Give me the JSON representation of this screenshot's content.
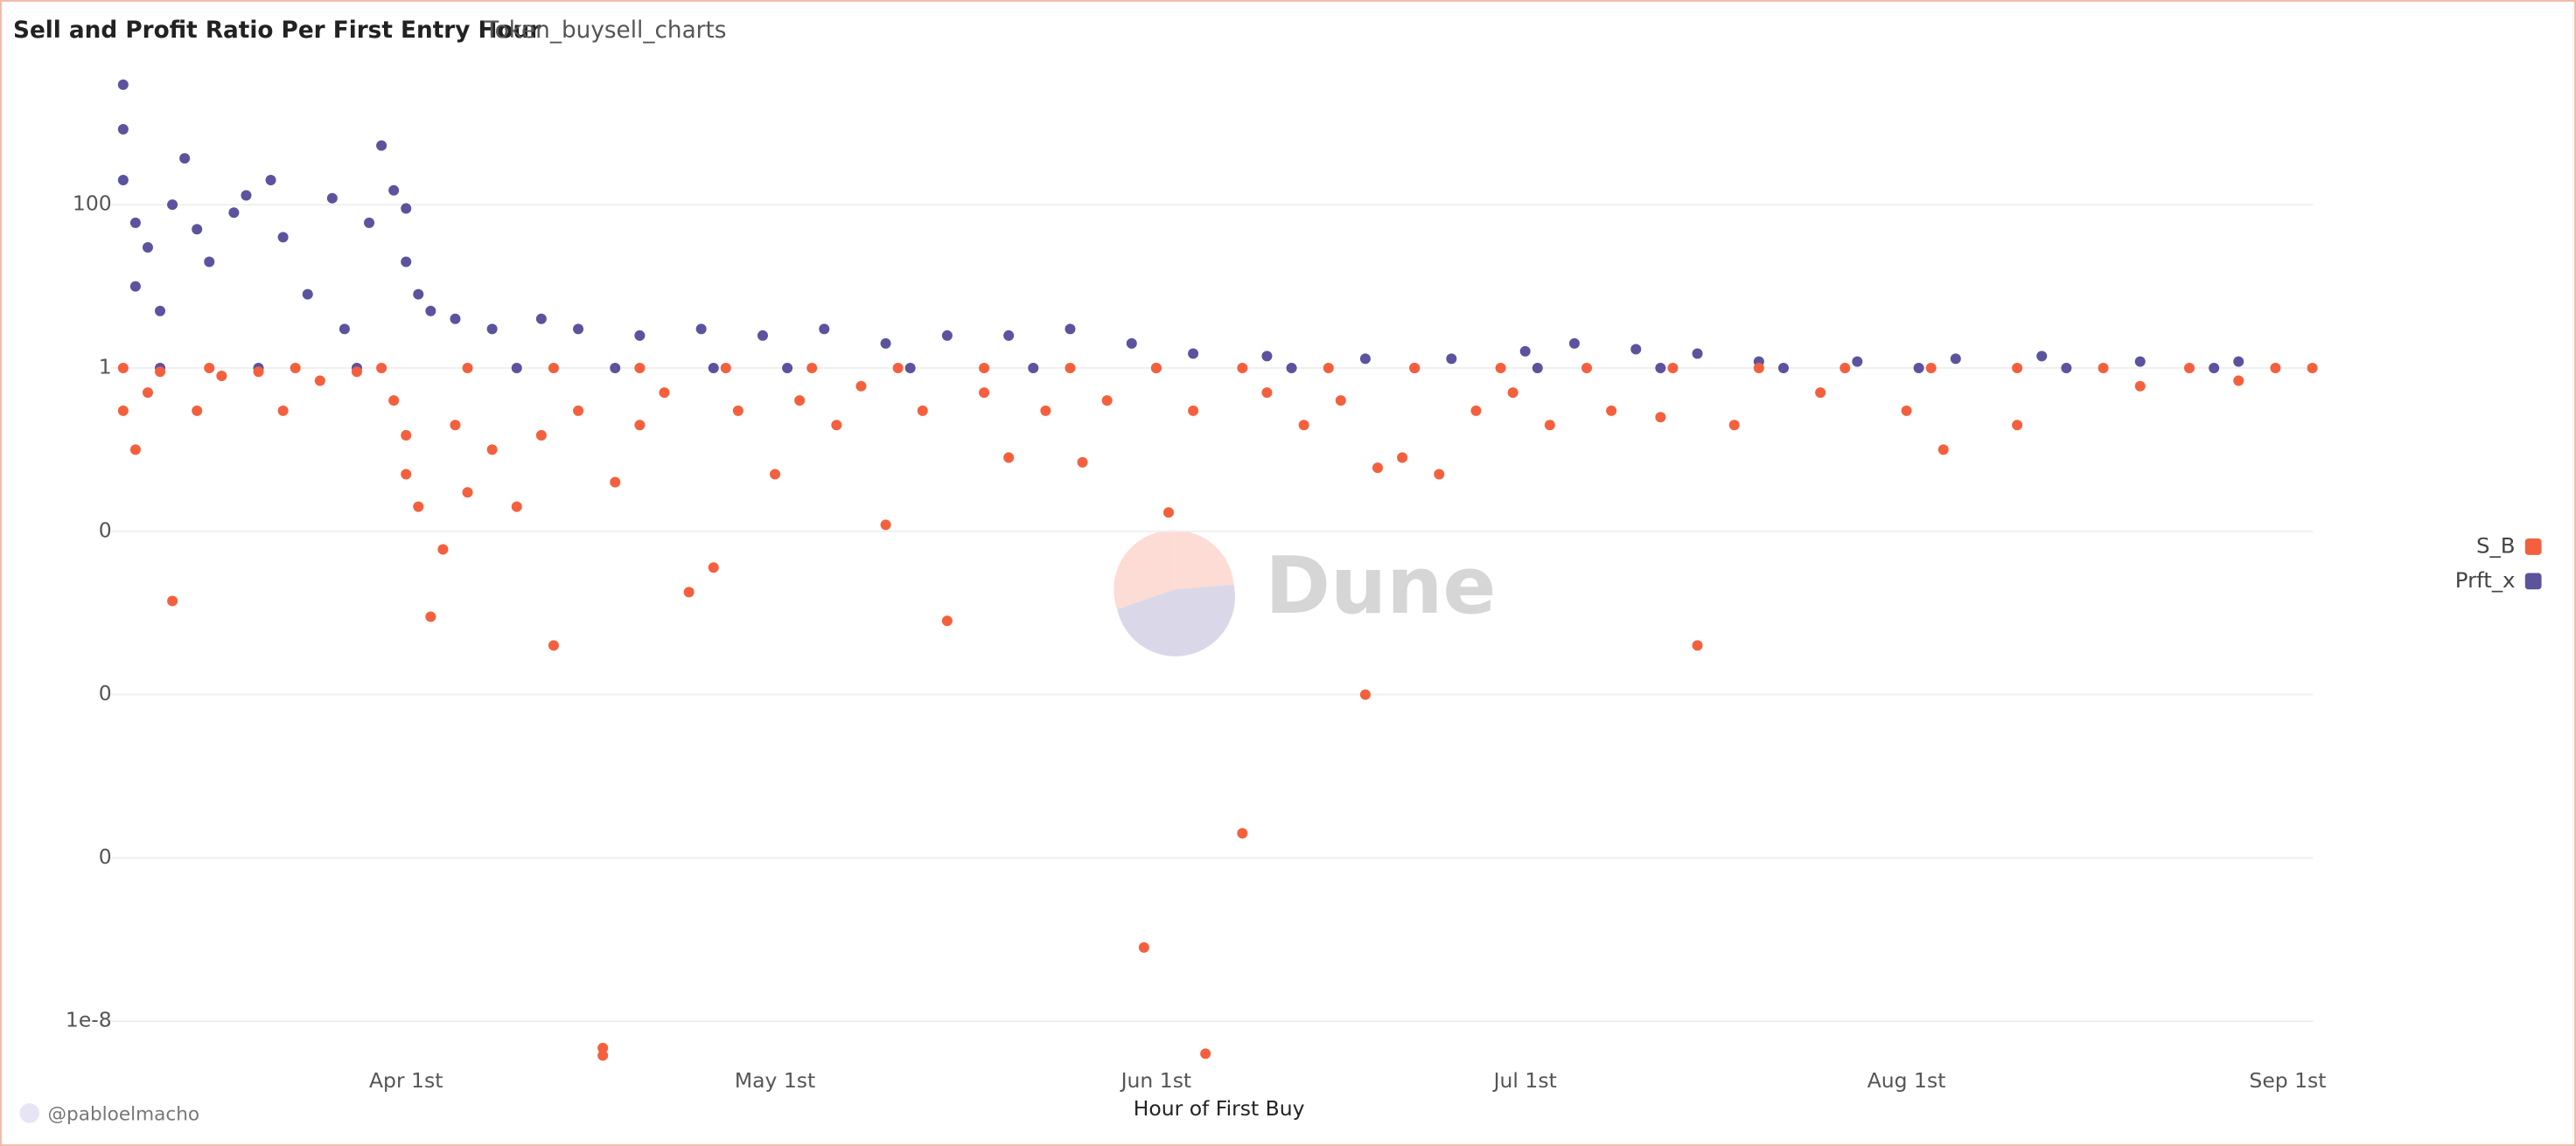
{
  "chart_data": {
    "type": "scatter",
    "title": "Sell and Profit Ratio Per First Entry Hour",
    "subtitle": "Token_buysell_charts",
    "x_label": "Hour of First Buy",
    "footer": "@pabloelmacho",
    "watermark": "Dune",
    "log_y": true,
    "grid": true,
    "legend": "right",
    "xlim": [
      "03-08",
      "09-04"
    ],
    "xticks": [
      {
        "value": "04-01",
        "label": "Apr 1st"
      },
      {
        "value": "05-01",
        "label": "May 1st"
      },
      {
        "value": "06-01",
        "label": "Jun 1st"
      },
      {
        "value": "07-01",
        "label": "Jul 1st"
      },
      {
        "value": "08-01",
        "label": "Aug 1st"
      },
      {
        "value": "09-01",
        "label": "Sep 1st"
      }
    ],
    "ylim": [
      3e-09,
      4000
    ],
    "yticks": [
      {
        "value": 1e-08,
        "label": "1e-8"
      },
      {
        "value": 1e-06,
        "label": "0"
      },
      {
        "value": 0.0001,
        "label": "0"
      },
      {
        "value": 0.01,
        "label": "0"
      },
      1,
      100
    ],
    "series": [
      {
        "name": "S_B",
        "color": "#f4603e",
        "x": [
          "03-09",
          "03-10",
          "03-11",
          "03-12",
          "03-13",
          "03-15",
          "03-17",
          "03-20",
          "03-22",
          "03-25",
          "03-28",
          "03-31",
          "04-01",
          "04-01",
          "04-02",
          "04-03",
          "04-04",
          "04-05",
          "04-06",
          "04-08",
          "04-10",
          "04-12",
          "04-13",
          "04-15",
          "04-17",
          "04-17",
          "04-18",
          "04-20",
          "04-22",
          "04-24",
          "04-26",
          "04-28",
          "05-01",
          "05-03",
          "05-06",
          "05-08",
          "05-10",
          "05-13",
          "05-15",
          "05-18",
          "05-20",
          "05-23",
          "05-26",
          "05-28",
          "05-31",
          "06-02",
          "06-04",
          "06-05",
          "06-08",
          "06-10",
          "06-13",
          "06-16",
          "06-18",
          "06-19",
          "06-21",
          "06-24",
          "06-27",
          "06-30",
          "07-03",
          "07-08",
          "07-12",
          "07-15",
          "07-18",
          "07-25",
          "08-01",
          "08-04",
          "08-10",
          "08-20",
          "08-28",
          "09-03",
          "03-09",
          "03-16",
          "03-23",
          "03-30",
          "04-06",
          "04-13",
          "04-20",
          "04-27",
          "05-04",
          "05-11",
          "05-18",
          "05-25",
          "06-01",
          "06-08",
          "06-15",
          "06-22",
          "06-29",
          "07-06",
          "07-13",
          "07-20",
          "07-27",
          "08-03",
          "08-10",
          "08-17",
          "08-24",
          "08-31"
        ],
        "values": [
          0.3,
          0.1,
          0.5,
          0.9,
          0.0014,
          0.3,
          0.8,
          0.9,
          0.3,
          0.7,
          0.9,
          0.4,
          0.15,
          0.05,
          0.02,
          0.0009,
          0.006,
          0.2,
          0.03,
          0.1,
          0.02,
          0.15,
          0.0004,
          0.3,
          4.7e-09,
          3.8e-09,
          0.04,
          0.2,
          0.5,
          0.0018,
          0.0036,
          0.3,
          0.05,
          0.4,
          0.2,
          0.6,
          0.012,
          0.3,
          0.0008,
          0.5,
          0.08,
          0.3,
          0.07,
          0.4,
          8e-08,
          0.017,
          0.3,
          4e-09,
          2e-06,
          0.5,
          0.2,
          0.4,
          0.0001,
          0.06,
          0.08,
          0.05,
          0.3,
          0.5,
          0.2,
          0.3,
          0.25,
          0.0004,
          0.2,
          0.5,
          0.3,
          0.1,
          0.2,
          0.6,
          0.7,
          1,
          1,
          1,
          1,
          1,
          1,
          1,
          1,
          1,
          1,
          1,
          1,
          1,
          1,
          1,
          1,
          1,
          1,
          1,
          1,
          1,
          1,
          1,
          1,
          1,
          1,
          1
        ]
      },
      {
        "name": "Prft_x",
        "color": "#5b539e",
        "x": [
          "03-09",
          "03-09",
          "03-09",
          "03-10",
          "03-10",
          "03-11",
          "03-12",
          "03-13",
          "03-14",
          "03-15",
          "03-16",
          "03-18",
          "03-19",
          "03-21",
          "03-22",
          "03-24",
          "03-26",
          "03-27",
          "03-29",
          "03-30",
          "03-31",
          "04-01",
          "04-01",
          "04-02",
          "04-03",
          "04-05",
          "04-08",
          "04-12",
          "04-15",
          "04-20",
          "04-25",
          "04-30",
          "05-05",
          "05-10",
          "05-15",
          "05-20",
          "05-25",
          "05-30",
          "06-04",
          "06-10",
          "06-18",
          "06-25",
          "07-01",
          "07-05",
          "07-10",
          "07-15",
          "07-20",
          "07-28",
          "08-05",
          "08-12",
          "08-20",
          "08-28",
          "03-12",
          "03-20",
          "03-28",
          "04-10",
          "04-18",
          "04-26",
          "05-02",
          "05-12",
          "05-22",
          "06-01",
          "06-12",
          "06-22",
          "07-02",
          "07-12",
          "07-22",
          "08-02",
          "08-14",
          "08-26"
        ],
        "values": [
          2950,
          840,
          200,
          60,
          10,
          30,
          5,
          100,
          370,
          50,
          20,
          80,
          130,
          200,
          40,
          8,
          120,
          3,
          60,
          530,
          150,
          90,
          20,
          8,
          5,
          4,
          3,
          4,
          3,
          2.5,
          3,
          2.5,
          3,
          2,
          2.5,
          2.5,
          3,
          2,
          1.5,
          1.4,
          1.3,
          1.3,
          1.6,
          2,
          1.7,
          1.5,
          1.2,
          1.2,
          1.3,
          1.4,
          1.2,
          1.2,
          1,
          1,
          1,
          1,
          1,
          1,
          1,
          1,
          1,
          1,
          1,
          1,
          1,
          1,
          1,
          1,
          1,
          1
        ]
      }
    ]
  }
}
